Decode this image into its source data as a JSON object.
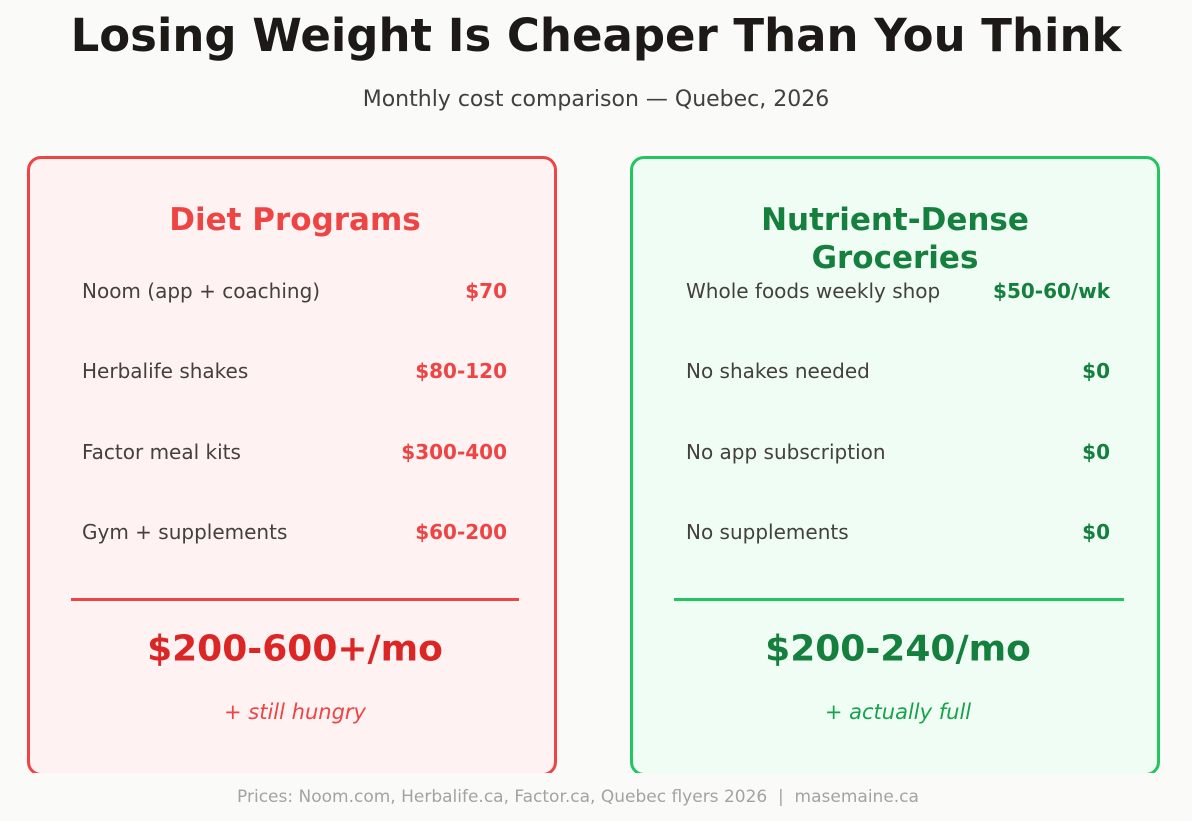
{
  "title": "Losing Weight Is Cheaper Than You Think",
  "subtitle": "Monthly cost comparison — Quebec, 2026",
  "colors": {
    "red": "#ef4444",
    "red_dark": "#dc2626",
    "red_bg": "#fef2f2",
    "green": "#22c55e",
    "green_dark": "#15803d",
    "green_bg": "#f0fdf4"
  },
  "left": {
    "heading": "Diet Programs",
    "rows": [
      {
        "label": "Noom (app + coaching)",
        "value": "$70"
      },
      {
        "label": "Herbalife shakes",
        "value": "$80-120"
      },
      {
        "label": "Factor meal kits",
        "value": "$300-400"
      },
      {
        "label": "Gym + supplements",
        "value": "$60-200"
      }
    ],
    "total": "$200-600+/mo",
    "note": "+ still hungry"
  },
  "right": {
    "heading": "Nutrient-Dense Groceries",
    "rows": [
      {
        "label": "Whole foods weekly shop",
        "value": "$50-60/wk"
      },
      {
        "label": "No shakes needed",
        "value": "$0"
      },
      {
        "label": "No app subscription",
        "value": "$0"
      },
      {
        "label": "No supplements",
        "value": "$0"
      }
    ],
    "total": "$200-240/mo",
    "note": "+ actually full"
  },
  "footer": "Prices: Noom.com, Herbalife.ca, Factor.ca, Quebec flyers 2026  |  masemaine.ca"
}
